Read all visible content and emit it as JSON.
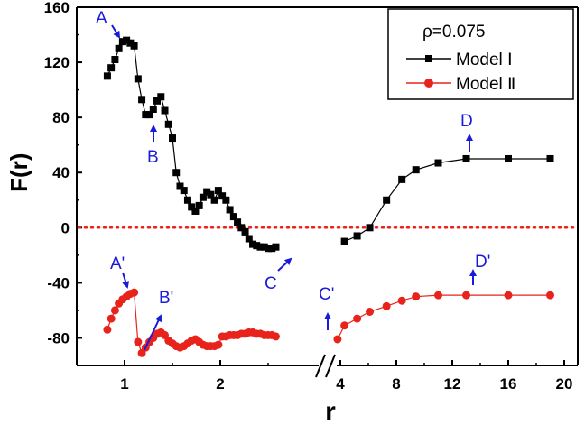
{
  "chart_data": {
    "type": "line",
    "xlabel": "r",
    "ylabel": "F(r)",
    "ylim": [
      -100,
      160
    ],
    "y_ticks": [
      160,
      120,
      80,
      40,
      0,
      -40,
      -80
    ],
    "x_axis_break": "between 2.7 and 4 (double-slash mark)",
    "x_ticks_left": [
      1,
      2
    ],
    "x_ticks_right": [
      4,
      8,
      12,
      16,
      20
    ],
    "reference_line": {
      "y": 0,
      "style": "dotted",
      "color": "#e8231c"
    },
    "legend": {
      "title": "ρ=0.075",
      "position": "top-right",
      "entries": [
        "Model Ⅰ",
        "Model Ⅱ"
      ]
    },
    "series": [
      {
        "name": "Model Ⅰ",
        "color": "#000000",
        "marker": "square",
        "segments": [
          {
            "x": [
              0.82,
              0.86,
              0.9,
              0.94,
              0.98,
              1.02,
              1.06,
              1.1,
              1.14,
              1.18,
              1.22,
              1.26,
              1.3,
              1.34,
              1.38,
              1.42,
              1.46,
              1.5,
              1.54,
              1.58,
              1.62,
              1.66,
              1.7,
              1.74,
              1.78,
              1.82,
              1.86,
              1.9,
              1.94,
              1.98,
              2.02,
              2.06,
              2.1,
              2.14,
              2.18,
              2.22,
              2.26,
              2.3,
              2.34,
              2.38,
              2.42,
              2.46,
              2.5,
              2.54,
              2.58
            ],
            "y": [
              110,
              116,
              122,
              130,
              135,
              136,
              134,
              132,
              108,
              93,
              82,
              82,
              86,
              92,
              95,
              85,
              75,
              65,
              40,
              30,
              27,
              20,
              15,
              12,
              16,
              22,
              26,
              24,
              20,
              27,
              23,
              20,
              13,
              8,
              4,
              0,
              -3,
              -8,
              -12,
              -13,
              -14,
              -14,
              -15,
              -15,
              -14
            ]
          },
          {
            "x": [
              4.3,
              5.2,
              6.1,
              7.3,
              8.4,
              9.4,
              11.0,
              13.0,
              16.0,
              19.0
            ],
            "y": [
              -10,
              -6,
              0,
              20,
              35,
              42,
              47,
              50,
              50,
              50
            ]
          }
        ]
      },
      {
        "name": "Model Ⅱ",
        "color": "#e8231c",
        "marker": "circle",
        "segments": [
          {
            "x": [
              0.82,
              0.86,
              0.9,
              0.94,
              0.98,
              1.02,
              1.06,
              1.1,
              1.14,
              1.18,
              1.22,
              1.26,
              1.3,
              1.34,
              1.38,
              1.42,
              1.46,
              1.5,
              1.54,
              1.58,
              1.62,
              1.66,
              1.7,
              1.74,
              1.78,
              1.82,
              1.86,
              1.9,
              1.94,
              1.98,
              2.02,
              2.06,
              2.1,
              2.14,
              2.18,
              2.22,
              2.26,
              2.3,
              2.34,
              2.38,
              2.42,
              2.46,
              2.5,
              2.54,
              2.58
            ],
            "y": [
              -74,
              -66,
              -60,
              -55,
              -52,
              -50,
              -48,
              -47,
              -83,
              -91,
              -87,
              -83,
              -80,
              -77,
              -76,
              -78,
              -82,
              -84,
              -86,
              -87,
              -86,
              -84,
              -82,
              -81,
              -83,
              -85,
              -86,
              -86,
              -86,
              -85,
              -79,
              -79,
              -78,
              -78,
              -78,
              -77,
              -77,
              -76,
              -76,
              -77,
              -77,
              -78,
              -78,
              -78,
              -79
            ]
          },
          {
            "x": [
              3.8,
              4.3,
              5.2,
              6.1,
              7.3,
              8.4,
              9.4,
              11.0,
              13.0,
              16.0,
              19.0
            ],
            "y": [
              -81,
              -71,
              -66,
              -61,
              -57,
              -53,
              -50,
              -49,
              -49,
              -49,
              -49
            ]
          }
        ]
      }
    ],
    "annotations": [
      {
        "text": "A",
        "color": "#1a1adb"
      },
      {
        "text": "B",
        "color": "#1a1adb"
      },
      {
        "text": "C",
        "color": "#1a1adb"
      },
      {
        "text": "D",
        "color": "#1a1adb"
      },
      {
        "text": "A'",
        "color": "#1a1adb"
      },
      {
        "text": "B'",
        "color": "#1a1adb"
      },
      {
        "text": "C'",
        "color": "#1a1adb"
      },
      {
        "text": "D'",
        "color": "#1a1adb"
      }
    ]
  }
}
